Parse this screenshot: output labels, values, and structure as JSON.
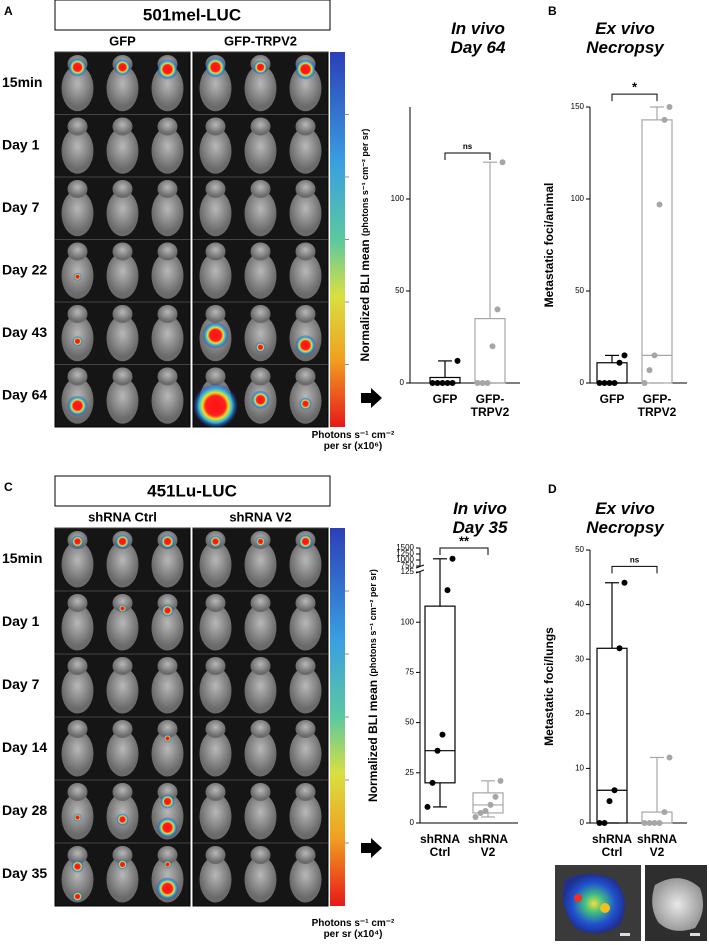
{
  "panels": [
    {
      "label": "A",
      "title": "501mel-LUC",
      "columns": [
        "GFP",
        "GFP-TRPV2"
      ],
      "rows": [
        "15min",
        "Day 1",
        "Day 7",
        "Day 22",
        "Day 43",
        "Day 64"
      ],
      "colorbar_caption": "Photons s⁻¹ cm⁻²\nper sr (x10⁶)"
    },
    {
      "label": "C",
      "title": "451Lu-LUC",
      "columns": [
        "shRNA Ctrl",
        "shRNA V2"
      ],
      "rows": [
        "15min",
        "Day 1",
        "Day 7",
        "Day 14",
        "Day 28",
        "Day 35"
      ],
      "colorbar_caption": "Photons s⁻¹ cm⁻²\nper sr (x10⁴)"
    }
  ],
  "chart_data": [
    {
      "type": "box",
      "title": "In vivo\nDay 64",
      "ylabel": "Normalized BLI mean",
      "ylabel_units": "(photons s⁻¹ cm⁻² per sr)",
      "categories": [
        "GFP",
        "GFP-\nTRPV2"
      ],
      "colors": [
        "#000000",
        "#a6a6a6"
      ],
      "min": [
        0,
        0
      ],
      "q1": [
        0,
        0
      ],
      "median": [
        0,
        0
      ],
      "q3": [
        3,
        35
      ],
      "max": [
        12,
        120
      ],
      "points": [
        [
          0,
          0,
          0,
          0,
          0,
          12
        ],
        [
          0,
          0,
          0,
          20,
          40,
          120
        ]
      ],
      "ylim": [
        0,
        150
      ],
      "yticks": [
        0,
        50,
        100
      ],
      "significance": {
        "label": "ns",
        "y": 125
      }
    },
    {
      "type": "box",
      "panel_label": "B",
      "title": "Ex vivo\nNecropsy",
      "ylabel": "Metastatic foci/animal",
      "categories": [
        "GFP",
        "GFP-\nTRPV2"
      ],
      "colors": [
        "#000000",
        "#a6a6a6"
      ],
      "min": [
        0,
        0
      ],
      "q1": [
        0,
        0
      ],
      "median": [
        0,
        15
      ],
      "q3": [
        11,
        143
      ],
      "max": [
        15,
        150
      ],
      "points": [
        [
          0,
          0,
          0,
          0,
          11,
          15
        ],
        [
          0,
          7,
          15,
          97,
          143,
          150
        ]
      ],
      "ylim": [
        0,
        150
      ],
      "yticks": [
        0,
        50,
        100,
        150
      ],
      "significance": {
        "label": "*",
        "y": 157
      }
    },
    {
      "type": "box",
      "title": "In vivo\nDay 35",
      "ylabel": "Normalized BLI mean",
      "ylabel_units": "(photons s⁻¹ cm⁻² per sr)",
      "categories": [
        "shRNA\nCtrl",
        "shRNA\nV2"
      ],
      "colors": [
        "#000000",
        "#a6a6a6"
      ],
      "min": [
        8,
        3
      ],
      "q1": [
        20,
        5
      ],
      "median": [
        36,
        9
      ],
      "q3": [
        108,
        15
      ],
      "max": [
        1050,
        21
      ],
      "points": [
        [
          8,
          20,
          36,
          44,
          116,
          1050
        ],
        [
          3,
          5,
          6,
          9,
          13,
          21
        ]
      ],
      "ylim": [
        0,
        125
      ],
      "yticks": [
        0,
        25,
        50,
        75,
        100,
        125
      ],
      "ylim_upper": [
        750,
        1500
      ],
      "yticks_upper": [
        750,
        1000,
        1250,
        1500
      ],
      "significance": {
        "label": "**",
        "y": 1500
      }
    },
    {
      "type": "box",
      "panel_label": "D",
      "title": "Ex vivo\nNecropsy",
      "ylabel": "Metastatic foci/lungs",
      "categories": [
        "shRNA\nCtrl",
        "shRNA\nV2"
      ],
      "colors": [
        "#000000",
        "#a6a6a6"
      ],
      "min": [
        0,
        0
      ],
      "q1": [
        0,
        0
      ],
      "median": [
        6,
        0
      ],
      "q3": [
        32,
        2
      ],
      "max": [
        44,
        12
      ],
      "points": [
        [
          0,
          0,
          4,
          6,
          32,
          44
        ],
        [
          0,
          0,
          0,
          0,
          2,
          12
        ]
      ],
      "ylim": [
        0,
        50
      ],
      "yticks": [
        0,
        10,
        20,
        30,
        40,
        50
      ],
      "significance": {
        "label": "ns",
        "y": 47
      }
    }
  ]
}
